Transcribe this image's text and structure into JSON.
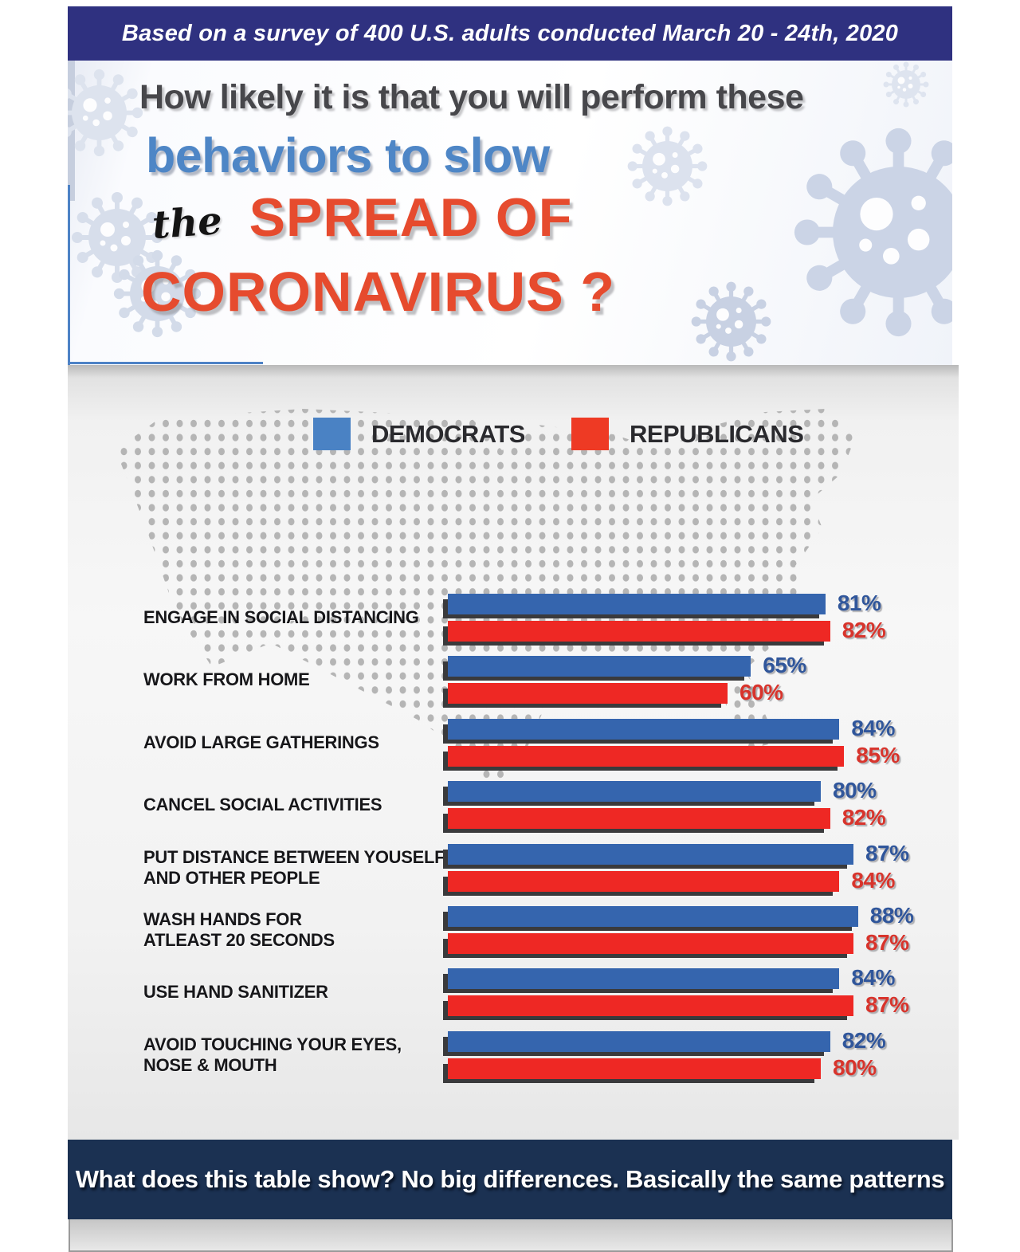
{
  "top_banner": {
    "text": "Based on a survey of 400 U.S. adults conducted March 20 - 24th, 2020"
  },
  "title": {
    "line1": "How likely it is that you will perform these",
    "line2": "behaviors to slow",
    "line3_script": "the",
    "line3_caps": "SPREAD OF",
    "line4": "CORONAVIRUS ?"
  },
  "legend": [
    {
      "label": "DEMOCRATS",
      "color": "#4a82c4"
    },
    {
      "label": "REPUBLICANS",
      "color": "#ee3a24"
    }
  ],
  "chart_data": {
    "type": "bar",
    "orientation": "horizontal",
    "categories": [
      {
        "lines": [
          "ENGAGE IN SOCIAL DISTANCING"
        ]
      },
      {
        "lines": [
          "WORK FROM HOME"
        ]
      },
      {
        "lines": [
          "AVOID LARGE GATHERINGS"
        ]
      },
      {
        "lines": [
          "CANCEL SOCIAL ACTIVITIES"
        ]
      },
      {
        "lines": [
          "PUT DISTANCE BETWEEN YOUSELF",
          "AND OTHER PEOPLE"
        ]
      },
      {
        "lines": [
          "WASH HANDS FOR",
          "ATLEAST 20 SECONDS"
        ]
      },
      {
        "lines": [
          "USE HAND SANITIZER"
        ]
      },
      {
        "lines": [
          "AVOID TOUCHING YOUR EYES,",
          "NOSE & MOUTH"
        ]
      }
    ],
    "series": [
      {
        "name": "DEMOCRATS",
        "color": "#3565ae",
        "values": [
          81,
          65,
          84,
          80,
          87,
          88,
          84,
          82
        ]
      },
      {
        "name": "REPUBLICANS",
        "color": "#ee2824",
        "values": [
          82,
          60,
          85,
          82,
          84,
          87,
          87,
          80
        ]
      }
    ],
    "value_suffix": "%",
    "xlim": [
      0,
      100
    ],
    "grid": false,
    "legend_position": "top"
  },
  "bottom_banner": {
    "text": "What does this table show? No big differences. Basically the same patterns"
  },
  "colors": {
    "top_banner_bg": "#2f3180",
    "bottom_banner_bg": "#1b3152",
    "title_line1": "#47474b",
    "title_line2": "#4e86c6",
    "title_red": "#e64b2e",
    "value_blue": "#30569b",
    "value_red": "#d8342c",
    "bar_shadow": "#3a3a3c",
    "map_dot": "#b5b5b5"
  }
}
